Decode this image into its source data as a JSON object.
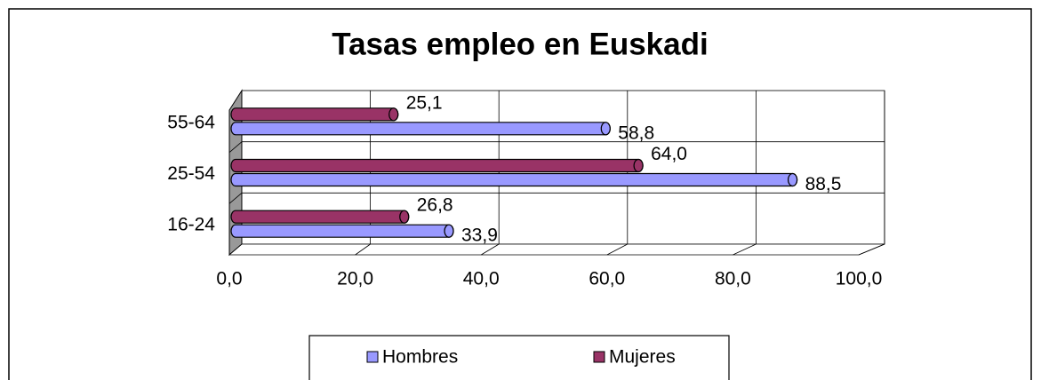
{
  "chart_data": {
    "type": "bar",
    "orientation": "horizontal",
    "title": "Tasas empleo en Euskadi",
    "categories": [
      "16-24",
      "25-54",
      "55-64"
    ],
    "series": [
      {
        "name": "Hombres",
        "color": "#9999ff",
        "values": [
          33.9,
          88.5,
          58.8
        ],
        "value_labels": [
          "33,9",
          "88,5",
          "58,8"
        ]
      },
      {
        "name": "Mujeres",
        "color": "#993366",
        "values": [
          26.8,
          64.0,
          25.1
        ],
        "value_labels": [
          "26,8",
          "64,0",
          "25,1"
        ]
      }
    ],
    "xlim": [
      0,
      100
    ],
    "xticks": [
      {
        "value": 0,
        "label": "0,0"
      },
      {
        "value": 20,
        "label": "20,0"
      },
      {
        "value": 40,
        "label": "40,0"
      },
      {
        "value": 60,
        "label": "60,0"
      },
      {
        "value": 80,
        "label": "80,0"
      },
      {
        "value": 100,
        "label": "100,0"
      }
    ],
    "grid": true,
    "legend": "bottom"
  }
}
